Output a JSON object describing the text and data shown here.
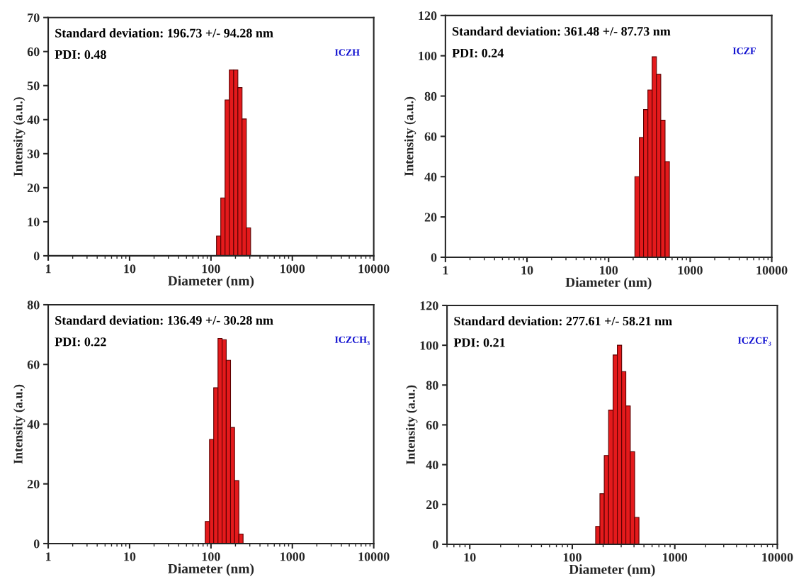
{
  "chart_data": [
    {
      "type": "histogram",
      "xlabel": "Diameter (nm)",
      "ylabel": "Intensity (a.u.)",
      "log": "x",
      "color": "#e41a1c",
      "bins": [
        117,
        132,
        149,
        168,
        190,
        214,
        241,
        272,
        307
      ],
      "values": [
        5.8,
        17,
        45.8,
        54.6,
        54.6,
        49.4,
        40.2,
        8.2
      ],
      "xlim": [
        1,
        10000
      ],
      "xticks": [
        1,
        10,
        100,
        1000,
        10000
      ],
      "ylim": [
        0,
        70
      ],
      "yticks": [
        0,
        10,
        20,
        30,
        40,
        50,
        60,
        70
      ],
      "annotations": [
        "Standard deviation: 196.73 +/- 94.28 nm",
        "PDI: 0.48",
        "ICZH"
      ]
    },
    {
      "type": "histogram",
      "xlabel": "Diameter (nm)",
      "ylabel": "Intensity (a.u.)",
      "log": "x",
      "color": "#e41a1c",
      "bins": [
        210,
        238,
        268,
        303,
        342,
        386,
        436,
        492,
        556
      ],
      "values": [
        40,
        59.4,
        73.3,
        83,
        99.5,
        90.8,
        68,
        47.5
      ],
      "xlim": [
        1,
        10000
      ],
      "xticks": [
        1,
        10,
        100,
        1000,
        10000
      ],
      "ylim": [
        0,
        120
      ],
      "yticks": [
        0,
        20,
        40,
        60,
        80,
        100,
        120
      ],
      "annotations": [
        "Standard deviation: 361.48 +/- 87.73 nm",
        "PDI: 0.24",
        "ICZF"
      ]
    },
    {
      "type": "histogram",
      "xlabel": "Diameter (nm)",
      "ylabel": "Intensity (a.u.)",
      "log": "x",
      "color": "#e41a1c",
      "bins": [
        85,
        96,
        108,
        122,
        137,
        154,
        174,
        195,
        220,
        248
      ],
      "values": [
        7.4,
        34.9,
        52.2,
        68.7,
        68.3,
        61.4,
        38.9,
        21.1,
        3.2
      ],
      "xlim": [
        1,
        10000
      ],
      "xticks": [
        1,
        10,
        100,
        1000,
        10000
      ],
      "ylim": [
        0,
        80
      ],
      "yticks": [
        0,
        20,
        40,
        60,
        80
      ],
      "annotations": [
        "Standard deviation: 136.49 +/- 30.28 nm",
        "PDI: 0.22",
        "ICZCH₃"
      ]
    },
    {
      "type": "histogram",
      "xlabel": "Diameter (nm)",
      "ylabel": "Intensity (a.u.)",
      "log": "x",
      "color": "#e41a1c",
      "bins": [
        169,
        186,
        205,
        226,
        250,
        275,
        303,
        333,
        368,
        406,
        447
      ],
      "values": [
        9.0,
        25.4,
        44.6,
        67.4,
        95.1,
        100,
        86.8,
        69.5,
        46.5,
        13.5
      ],
      "xlim": [
        6,
        10000
      ],
      "xticks": [
        10,
        100,
        1000,
        10000
      ],
      "ylim": [
        0,
        120
      ],
      "yticks": [
        0,
        20,
        40,
        60,
        80,
        100,
        120
      ],
      "annotations": [
        "Standard deviation: 277.61 +/- 58.21 nm",
        "PDI: 0.21",
        "ICZCF₃"
      ]
    }
  ]
}
